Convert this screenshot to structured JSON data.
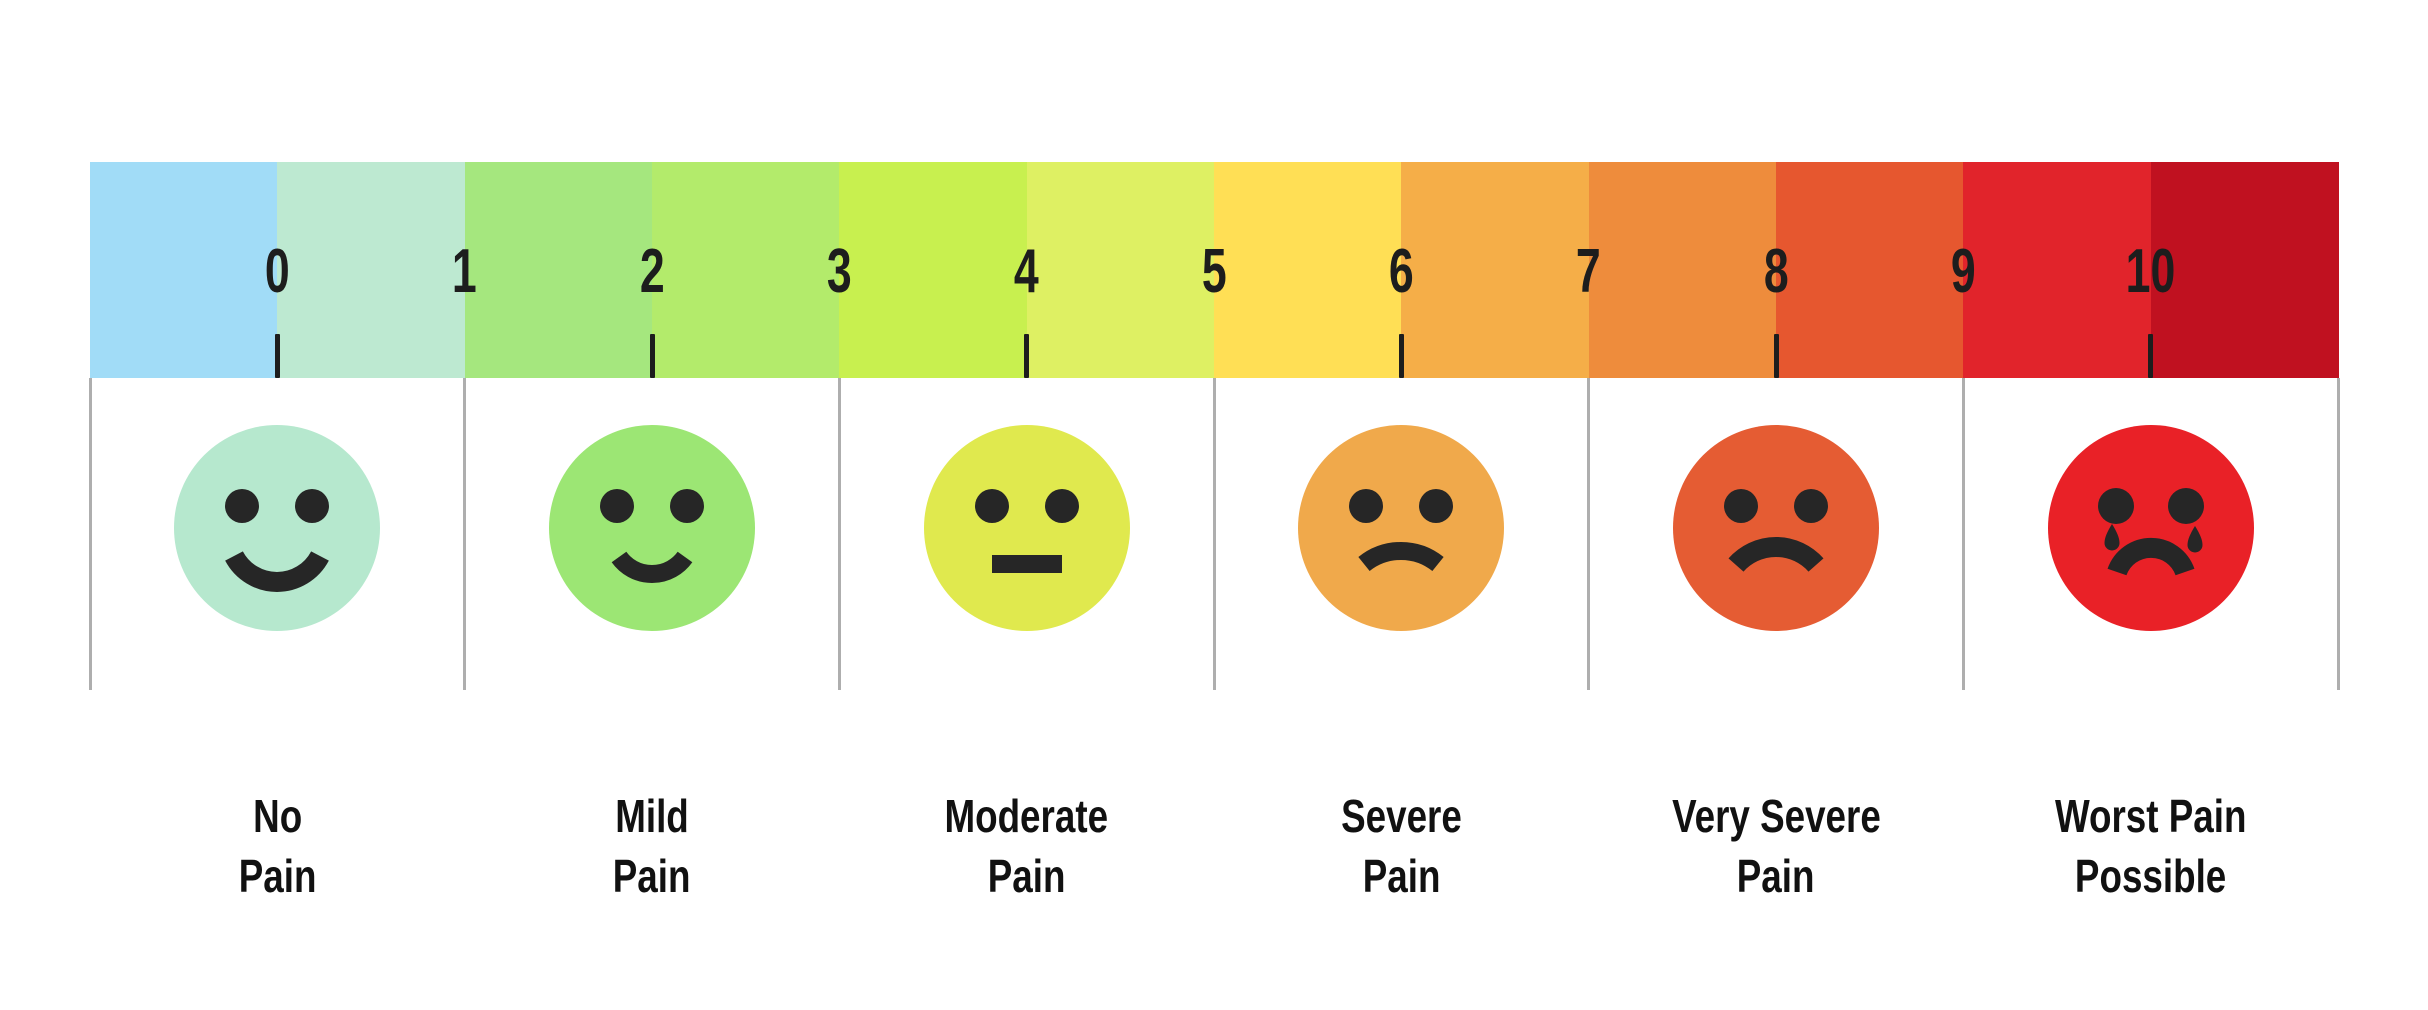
{
  "scale_bar": {
    "segments": [
      {
        "color": "#a1dcf7"
      },
      {
        "color": "#bde9d1"
      },
      {
        "color": "#a5e77e"
      },
      {
        "color": "#b3eb6b"
      },
      {
        "color": "#c8f04f"
      },
      {
        "color": "#def063"
      },
      {
        "color": "#ffdf55"
      },
      {
        "color": "#f5ae48"
      },
      {
        "color": "#ee8c3c"
      },
      {
        "color": "#e6572f"
      },
      {
        "color": "#e1242b"
      },
      {
        "color": "#c01120"
      }
    ],
    "numbers": [
      {
        "value": "0"
      },
      {
        "value": "1"
      },
      {
        "value": "2"
      },
      {
        "value": "3"
      },
      {
        "value": "4"
      },
      {
        "value": "5"
      },
      {
        "value": "6"
      },
      {
        "value": "7"
      },
      {
        "value": "8"
      },
      {
        "value": "9"
      },
      {
        "value": "10"
      }
    ],
    "tick_values": [
      "0",
      "2",
      "4",
      "6",
      "8",
      "10"
    ],
    "number_color": "#1d1d1d",
    "tick_color": "#1d1d1d"
  },
  "grid": {
    "divider_color": "#aeaeae"
  },
  "faces": [
    {
      "value": "0",
      "expression": "big-smile",
      "color": "#b6e8ce",
      "label_line1": "No",
      "label_line2": "Pain"
    },
    {
      "value": "2",
      "expression": "smile",
      "color": "#9ce674",
      "label_line1": "Mild",
      "label_line2": "Pain"
    },
    {
      "value": "4",
      "expression": "neutral",
      "color": "#e0e94e",
      "label_line1": "Moderate",
      "label_line2": "Pain"
    },
    {
      "value": "6",
      "expression": "slight-frown",
      "color": "#f0a94b",
      "label_line1": "Severe",
      "label_line2": "Pain"
    },
    {
      "value": "8",
      "expression": "frown",
      "color": "#e55c33",
      "label_line1": "Very Severe",
      "label_line2": "Pain"
    },
    {
      "value": "10",
      "expression": "frown-tears",
      "color": "#e92127",
      "label_line1": "Worst Pain",
      "label_line2": "Possible"
    }
  ],
  "feature_color": "#262626"
}
